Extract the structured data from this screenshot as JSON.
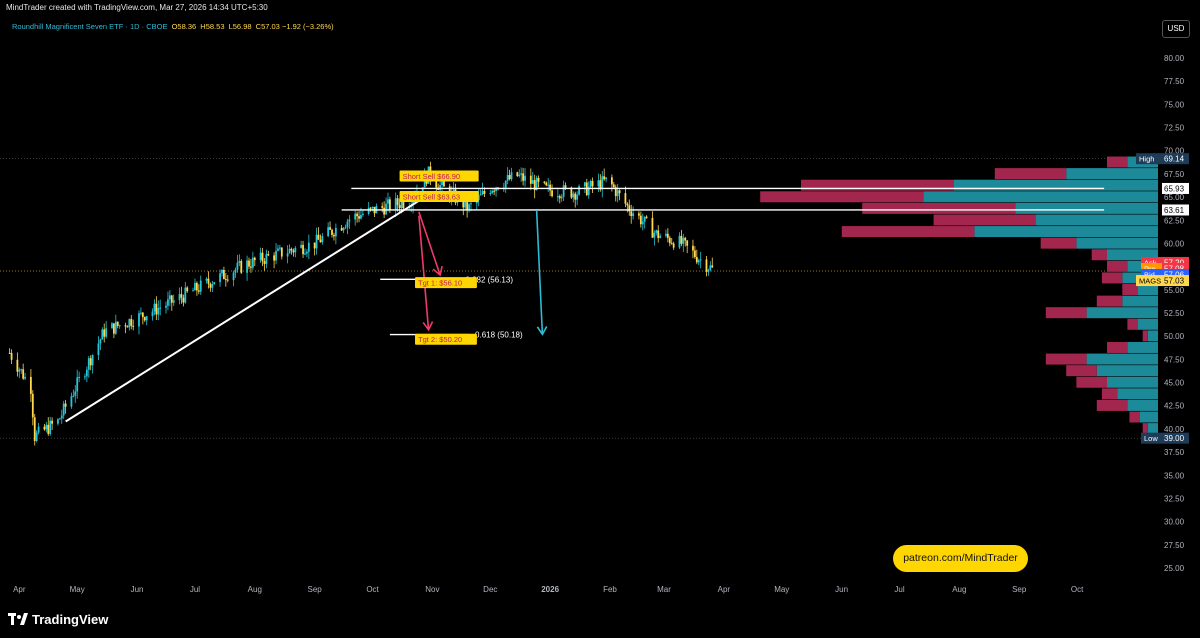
{
  "header": {
    "credit": "MindTrader created with TradingView.com, Mar 27, 2026 14:34 UTC+5:30",
    "symbol": "Roundhill Magnificent Seven ETF · 1D · CBOE",
    "open_label": "O",
    "open": "58.36",
    "high_label": "H",
    "high": "58.53",
    "low_label": "L",
    "low": "56.98",
    "close_label": "C",
    "close": "57.03",
    "change": "−1.92 (−3.26%)",
    "currency": "USD"
  },
  "footer": {
    "brand": "TradingView",
    "patreon": "patreon.com/MindTrader"
  },
  "colors": {
    "up": "#26c6da",
    "down": "#ffd84d",
    "profile_buy": "#1d8a99",
    "profile_sell": "#a3264f",
    "arrow_red": "#f23a6a",
    "arrow_cyan": "#2fb9d4",
    "white": "#ffffff"
  },
  "chart_data": {
    "type": "candlestick",
    "ylim": [
      22.5,
      82.5
    ],
    "yticks": [
      "80.00",
      "77.50",
      "75.00",
      "72.50",
      "70.00",
      "67.50",
      "65.00",
      "62.50",
      "60.00",
      "57.50",
      "55.00",
      "52.50",
      "50.00",
      "47.50",
      "45.00",
      "42.50",
      "40.00",
      "37.50",
      "35.00",
      "32.50",
      "30.00",
      "27.50",
      "25.00"
    ],
    "xticks": [
      "Apr",
      "May",
      "Jun",
      "Jul",
      "Aug",
      "Sep",
      "Oct",
      "Nov",
      "Dec",
      "2026",
      "Feb",
      "Mar",
      "Apr",
      "May",
      "Jun",
      "Jul",
      "Aug",
      "Sep",
      "Oct"
    ],
    "price_path": [
      [
        "2025-03-27",
        48.2
      ],
      [
        "2025-04-07",
        44.5
      ],
      [
        "2025-04-09",
        39.2
      ],
      [
        "2025-04-21",
        40.8
      ],
      [
        "2025-05-01",
        44.8
      ],
      [
        "2025-05-15",
        50.5
      ],
      [
        "2025-06-01",
        52.0
      ],
      [
        "2025-06-20",
        53.8
      ],
      [
        "2025-07-10",
        56.0
      ],
      [
        "2025-07-28",
        57.8
      ],
      [
        "2025-08-15",
        59.0
      ],
      [
        "2025-09-01",
        60.0
      ],
      [
        "2025-09-20",
        62.8
      ],
      [
        "2025-10-05",
        63.8
      ],
      [
        "2025-10-20",
        64.6
      ],
      [
        "2025-10-30",
        67.5
      ],
      [
        "2025-11-05",
        66.2
      ],
      [
        "2025-11-20",
        63.8
      ],
      [
        "2025-12-01",
        66.0
      ],
      [
        "2025-12-15",
        67.3
      ],
      [
        "2025-12-30",
        65.8
      ],
      [
        "2026-01-15",
        65.5
      ],
      [
        "2026-01-31",
        66.8
      ],
      [
        "2026-02-10",
        64.0
      ],
      [
        "2026-02-25",
        61.0
      ],
      [
        "2026-03-10",
        60.0
      ],
      [
        "2026-03-27",
        57.03
      ]
    ],
    "horizontal_lines": [
      {
        "label": "",
        "price": 65.93,
        "from": "2025-09-20",
        "to": "2026-10-15"
      },
      {
        "label": "",
        "price": 63.61,
        "from": "2025-09-15",
        "to": "2026-10-15"
      },
      {
        "label": "0.382 (56.13)",
        "price": 56.13,
        "from": "2025-10-05",
        "to": "2025-11-15"
      },
      {
        "label": "0.618 (50.18)",
        "price": 50.18,
        "from": "2025-10-10",
        "to": "2025-11-20"
      }
    ],
    "trendline": {
      "from": [
        "2025-04-25",
        40.8
      ],
      "to": [
        "2025-10-25",
        64.6
      ]
    },
    "annotations": [
      {
        "text": "Short Sell $66.90",
        "date": "2025-10-15",
        "price": 67.0
      },
      {
        "text": "Short Sell $63.63",
        "date": "2025-10-15",
        "price": 64.8
      },
      {
        "text": "Tgt 1: $56.10",
        "date": "2025-10-23",
        "price": 55.5
      },
      {
        "text": "Tgt 2: $50.20",
        "date": "2025-10-23",
        "price": 49.4
      }
    ],
    "arrows": [
      {
        "color": "red",
        "from": [
          "2025-10-25",
          63.4
        ],
        "to": [
          "2025-11-05",
          56.6
        ]
      },
      {
        "color": "red",
        "from": [
          "2025-10-25",
          63.0
        ],
        "to": [
          "2025-10-30",
          50.7
        ]
      },
      {
        "color": "cyan",
        "from": [
          "2025-12-25",
          63.6
        ],
        "to": [
          "2025-12-28",
          50.2
        ]
      }
    ],
    "price_badges": [
      {
        "label": "High",
        "value": "69.14",
        "price": 69.14,
        "bg": "#1e3b57",
        "value_bg": "#1e3b57"
      },
      {
        "label": "",
        "value": "65.93",
        "price": 65.93,
        "bg": "#000000",
        "value_bg": "#ffffff"
      },
      {
        "label": "",
        "value": "63.61",
        "price": 63.61,
        "bg": "#000000",
        "value_bg": "#ffffff"
      },
      {
        "label": "Ask",
        "value": "57.20",
        "price": 57.95,
        "bg": "#f23645",
        "value_bg": "#f23645"
      },
      {
        "label": "Pre",
        "value": "57.08",
        "price": 57.3,
        "bg": "#ff9800",
        "value_bg": "#f23645"
      },
      {
        "label": "Bid",
        "value": "57.06",
        "price": 56.65,
        "bg": "#2962ff",
        "value_bg": "#2962ff"
      },
      {
        "label": "MAGS",
        "value": "57.03",
        "price": 56.0,
        "bg": "#ffd84d",
        "value_bg": "#ffd84d"
      },
      {
        "label": "Low",
        "value": "39.00",
        "price": 39.0,
        "bg": "#1e3b57",
        "value_bg": "#1e3b57"
      }
    ],
    "volume_profile": [
      {
        "price": 68.75,
        "buy": 3,
        "sell": 2
      },
      {
        "price": 67.5,
        "buy": 9,
        "sell": 7
      },
      {
        "price": 66.25,
        "buy": 20,
        "sell": 15
      },
      {
        "price": 65.0,
        "buy": 23,
        "sell": 16
      },
      {
        "price": 63.75,
        "buy": 14,
        "sell": 15
      },
      {
        "price": 62.5,
        "buy": 12,
        "sell": 10
      },
      {
        "price": 61.25,
        "buy": 18,
        "sell": 13
      },
      {
        "price": 60.0,
        "buy": 8,
        "sell": 3.5
      },
      {
        "price": 58.75,
        "buy": 5,
        "sell": 1.5
      },
      {
        "price": 57.5,
        "buy": 3,
        "sell": 2
      },
      {
        "price": 56.25,
        "buy": 3.5,
        "sell": 2
      },
      {
        "price": 55.0,
        "buy": 2,
        "sell": 1.5
      },
      {
        "price": 53.75,
        "buy": 3.5,
        "sell": 2.5
      },
      {
        "price": 52.5,
        "buy": 7,
        "sell": 4
      },
      {
        "price": 51.25,
        "buy": 2,
        "sell": 1
      },
      {
        "price": 50.0,
        "buy": 1,
        "sell": 0.5
      },
      {
        "price": 48.75,
        "buy": 3,
        "sell": 2
      },
      {
        "price": 47.5,
        "buy": 7,
        "sell": 4
      },
      {
        "price": 46.25,
        "buy": 6,
        "sell": 3
      },
      {
        "price": 45.0,
        "buy": 5,
        "sell": 3
      },
      {
        "price": 43.75,
        "buy": 4,
        "sell": 1.5
      },
      {
        "price": 42.5,
        "buy": 3,
        "sell": 3
      },
      {
        "price": 41.25,
        "buy": 1.8,
        "sell": 1
      },
      {
        "price": 40.0,
        "buy": 1,
        "sell": 0.5
      }
    ],
    "dotted_levels": [
      69.14,
      39.0,
      57.03
    ]
  }
}
